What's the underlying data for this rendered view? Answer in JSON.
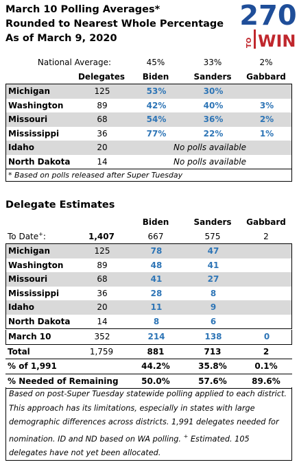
{
  "header": {
    "title_lines": [
      "March 10 Polling Averages*",
      "Rounded to Nearest Whole Percentage",
      "As of March 9, 2020"
    ],
    "logo": {
      "number": "270",
      "to": "TO",
      "win": "WIN"
    }
  },
  "polling": {
    "national_label": "National Average:",
    "national": [
      "45%",
      "33%",
      "2%"
    ],
    "columns": [
      "Delegates",
      "Biden",
      "Sanders",
      "Gabbard"
    ],
    "rows": [
      {
        "state": "Michigan",
        "delegates": 125,
        "biden": "53%",
        "sanders": "30%"
      },
      {
        "state": "Washington",
        "delegates": 89,
        "biden": "42%",
        "sanders": "40%",
        "gabbard": "3%"
      },
      {
        "state": "Missouri",
        "delegates": 68,
        "biden": "54%",
        "sanders": "36%",
        "gabbard": "2%"
      },
      {
        "state": "Mississippi",
        "delegates": 36,
        "biden": "77%",
        "sanders": "22%",
        "gabbard": "1%"
      },
      {
        "state": "Idaho",
        "delegates": 20,
        "note": "No polls available"
      },
      {
        "state": "North Dakota",
        "delegates": 14,
        "note": "No polls available"
      }
    ],
    "footnote": "* Based on polls released after Super Tuesday"
  },
  "estimates": {
    "title": "Delegate Estimates",
    "columns": [
      "Biden",
      "Sanders",
      "Gabbard"
    ],
    "to_date": {
      "label_parts": [
        "To Date",
        "+",
        ":"
      ],
      "delegates": "1,407",
      "biden": 667,
      "sanders": 575,
      "gabbard": 2
    },
    "rows": [
      {
        "state": "Michigan",
        "delegates": 125,
        "biden": 78,
        "sanders": 47
      },
      {
        "state": "Washington",
        "delegates": 89,
        "biden": 48,
        "sanders": 41
      },
      {
        "state": "Missouri",
        "delegates": 68,
        "biden": 41,
        "sanders": 27
      },
      {
        "state": "Mississippi",
        "delegates": 36,
        "biden": 28,
        "sanders": 8
      },
      {
        "state": "Idaho",
        "delegates": 20,
        "biden": 11,
        "sanders": 9
      },
      {
        "state": "North Dakota",
        "delegates": 14,
        "biden": 8,
        "sanders": 6
      }
    ],
    "march10": {
      "state": "March 10",
      "delegates": 352,
      "biden": 214,
      "sanders": 138,
      "gabbard": 0
    },
    "total": {
      "state": "Total",
      "delegates": "1,759",
      "biden": 881,
      "sanders": 713,
      "gabbard": 2
    },
    "percent": {
      "state": "% of 1,991",
      "biden": "44.2%",
      "sanders": "35.8%",
      "gabbard": "0.1%"
    },
    "needed": {
      "state": "% Needed of Remaining",
      "biden": "50.0%",
      "sanders": "57.6%",
      "gabbard": "89.6%"
    },
    "note_parts": [
      "Based on post-Super Tuesday statewide polling applied to each district. This approach has its limitations, especially in states with large demographic differences across districts. 1,991 delegates needed for nomination. ID and ND based on WA polling. ",
      "+",
      " Estimated. 105 delegates have not yet been allocated."
    ]
  }
}
